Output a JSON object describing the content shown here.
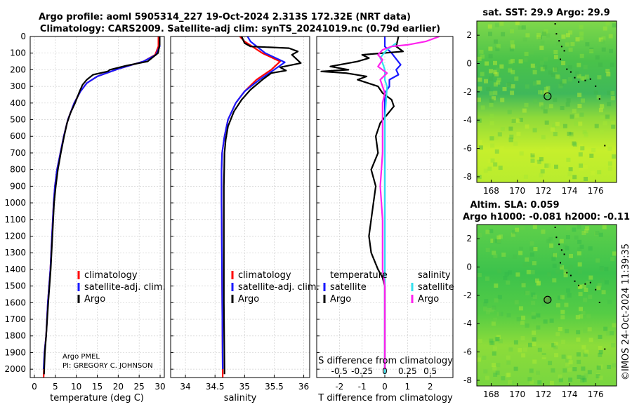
{
  "title": {
    "line1": "Argo profile: aoml 5905314_227 19-Oct-2024 2.313S 172.32E (NRT data)",
    "line2": "Climatology: CARS2009. Satellite-adj clim: synTS_20241019.nc (0.79d earlier)"
  },
  "pi_note": {
    "line1": "Argo PMEL",
    "line2": "PI: GREGORY C. JOHNSON"
  },
  "timestamp": "©IMOS 24-Oct-2024 11:39:35",
  "colors": {
    "climatology": "#ff0000",
    "satellite": "#1a1aff",
    "argo": "#000000",
    "sal_satellite": "#33e0ee",
    "sal_argo": "#ff22ee"
  },
  "chart_data": [
    {
      "type": "line",
      "id": "temperature",
      "xlabel": "temperature (deg C)",
      "xlim": [
        -1,
        31
      ],
      "xticks": [
        0,
        5,
        10,
        15,
        20,
        25,
        30
      ],
      "xtick_labels": [
        "0",
        "5",
        "10",
        "15",
        "20",
        "25",
        "30"
      ],
      "ylim": [
        2050,
        0
      ],
      "yticks": [
        0,
        100,
        200,
        300,
        400,
        500,
        600,
        700,
        800,
        900,
        1000,
        1100,
        1200,
        1300,
        1400,
        1500,
        1600,
        1700,
        1800,
        1900,
        2000
      ],
      "legend": [
        "climatology",
        "satellite-adj. clim.",
        "Argo"
      ],
      "series": [
        {
          "name": "climatology",
          "color": "#ff0000",
          "points": [
            [
              29.6,
              0
            ],
            [
              29.6,
              60
            ],
            [
              28.8,
              110
            ],
            [
              26,
              150
            ],
            [
              20,
              195
            ],
            [
              15,
              240
            ],
            [
              12.5,
              280
            ],
            [
              11,
              330
            ],
            [
              9.5,
              400
            ],
            [
              8,
              500
            ],
            [
              7,
              600
            ],
            [
              6.2,
              700
            ],
            [
              5.4,
              800
            ],
            [
              4.9,
              900
            ],
            [
              4.6,
              1000
            ],
            [
              4.2,
              1200
            ],
            [
              3.8,
              1400
            ],
            [
              3.2,
              1600
            ],
            [
              2.8,
              1800
            ],
            [
              2.4,
              1900
            ],
            [
              2.2,
              2050
            ]
          ]
        },
        {
          "name": "satellite-adj. clim.",
          "color": "#1a1aff",
          "points": [
            [
              29.9,
              0
            ],
            [
              29.9,
              60
            ],
            [
              29,
              110
            ],
            [
              26,
              150
            ],
            [
              20,
              195
            ],
            [
              15,
              240
            ],
            [
              12.5,
              280
            ],
            [
              11,
              330
            ],
            [
              9.5,
              400
            ],
            [
              8,
              500
            ],
            [
              7,
              600
            ],
            [
              6.2,
              700
            ],
            [
              5.4,
              800
            ],
            [
              4.9,
              900
            ],
            [
              4.6,
              1000
            ],
            [
              4.2,
              1200
            ],
            [
              3.8,
              1400
            ],
            [
              3.2,
              1600
            ],
            [
              2.8,
              1800
            ],
            [
              2.4,
              1900
            ],
            [
              2.2,
              2000
            ]
          ]
        },
        {
          "name": "Argo",
          "color": "#000000",
          "points": [
            [
              29.9,
              0
            ],
            [
              29.9,
              50
            ],
            [
              29.5,
              100
            ],
            [
              27,
              150
            ],
            [
              22,
              175
            ],
            [
              18,
              200
            ],
            [
              17.5,
              210
            ],
            [
              14,
              230
            ],
            [
              12.5,
              260
            ],
            [
              11.5,
              290
            ],
            [
              10.8,
              330
            ],
            [
              9.7,
              400
            ],
            [
              8.6,
              460
            ],
            [
              7.8,
              520
            ],
            [
              7.1,
              600
            ],
            [
              6.3,
              700
            ],
            [
              5.6,
              800
            ],
            [
              5.1,
              900
            ],
            [
              4.7,
              1000
            ],
            [
              4.3,
              1200
            ],
            [
              3.9,
              1400
            ],
            [
              3.3,
              1600
            ],
            [
              2.8,
              1800
            ],
            [
              2.5,
              1900
            ],
            [
              2.3,
              2030
            ]
          ]
        }
      ]
    },
    {
      "type": "line",
      "id": "salinity",
      "xlabel": "salinity",
      "xlim": [
        33.75,
        36.1
      ],
      "xticks": [
        34,
        34.5,
        35,
        35.5,
        36
      ],
      "xtick_labels": [
        "34",
        "34.5",
        "35",
        "35.5",
        "36"
      ],
      "ylim": [
        2050,
        0
      ],
      "yticks": [
        0,
        100,
        200,
        300,
        400,
        500,
        600,
        700,
        800,
        900,
        1000,
        1100,
        1200,
        1300,
        1400,
        1500,
        1600,
        1700,
        1800,
        1900,
        2000
      ],
      "legend": [
        "climatology",
        "satellite-adj. clim.",
        "Argo"
      ],
      "series": [
        {
          "name": "climatology",
          "color": "#ff0000",
          "points": [
            [
              34.92,
              0
            ],
            [
              35.0,
              30
            ],
            [
              35.3,
              100
            ],
            [
              35.6,
              150
            ],
            [
              35.45,
              200
            ],
            [
              35.2,
              260
            ],
            [
              35.0,
              330
            ],
            [
              34.85,
              400
            ],
            [
              34.72,
              500
            ],
            [
              34.66,
              600
            ],
            [
              34.62,
              700
            ],
            [
              34.61,
              800
            ],
            [
              34.61,
              1000
            ],
            [
              34.62,
              1500
            ],
            [
              34.63,
              2000
            ],
            [
              34.63,
              2050
            ]
          ]
        },
        {
          "name": "satellite-adj. clim.",
          "color": "#1a1aff",
          "points": [
            [
              35.05,
              0
            ],
            [
              35.1,
              30
            ],
            [
              35.35,
              100
            ],
            [
              35.68,
              155
            ],
            [
              35.5,
              200
            ],
            [
              35.25,
              260
            ],
            [
              35.0,
              330
            ],
            [
              34.85,
              400
            ],
            [
              34.72,
              500
            ],
            [
              34.66,
              600
            ],
            [
              34.62,
              700
            ],
            [
              34.61,
              800
            ],
            [
              34.61,
              1000
            ],
            [
              34.62,
              1500
            ],
            [
              34.63,
              2000
            ]
          ]
        },
        {
          "name": "Argo",
          "color": "#000000",
          "points": [
            [
              34.95,
              0
            ],
            [
              35.0,
              40
            ],
            [
              35.1,
              60
            ],
            [
              35.75,
              70
            ],
            [
              35.9,
              90
            ],
            [
              35.8,
              110
            ],
            [
              35.95,
              160
            ],
            [
              35.6,
              185
            ],
            [
              35.7,
              205
            ],
            [
              35.45,
              220
            ],
            [
              35.3,
              260
            ],
            [
              35.1,
              320
            ],
            [
              34.95,
              380
            ],
            [
              34.82,
              450
            ],
            [
              34.72,
              540
            ],
            [
              34.68,
              620
            ],
            [
              34.66,
              700
            ],
            [
              34.65,
              900
            ],
            [
              34.65,
              1200
            ],
            [
              34.65,
              1600
            ],
            [
              34.66,
              2000
            ],
            [
              34.66,
              2030
            ]
          ]
        }
      ]
    },
    {
      "type": "line",
      "id": "difference",
      "xlabel": "T difference from climatology",
      "top_xlabel": "S difference from climatology",
      "xlim": [
        -3,
        3
      ],
      "xticks": [
        -2,
        -1,
        0,
        1,
        2
      ],
      "xtick_labels": [
        "-2",
        "-1",
        "0",
        "1",
        "2"
      ],
      "top_xticks": [
        -0.5,
        -0.25,
        0,
        0.25,
        0.5
      ],
      "top_xtick_labels": [
        "-0.5",
        "-0.25",
        "0",
        "0.25",
        "0.5"
      ],
      "ylim": [
        2050,
        0
      ],
      "yticks": [
        0,
        100,
        200,
        300,
        400,
        500,
        600,
        700,
        800,
        900,
        1000,
        1100,
        1200,
        1300,
        1400,
        1500,
        1600,
        1700,
        1800,
        1900,
        2000
      ],
      "legend": {
        "temperature": {
          "title": "temperature",
          "items": [
            "satellite",
            "Argo"
          ]
        },
        "salinity": {
          "title": "salinity",
          "items": [
            "satellite",
            "Argo"
          ]
        }
      },
      "series": [
        {
          "name": "T satellite",
          "color": "#1a1aff",
          "points": [
            [
              0,
              0
            ],
            [
              0,
              60
            ],
            [
              0.3,
              100
            ],
            [
              0.7,
              170
            ],
            [
              0.5,
              200
            ],
            [
              0.6,
              230
            ],
            [
              0.2,
              260
            ],
            [
              0.2,
              300
            ],
            [
              0,
              340
            ],
            [
              0,
              500
            ],
            [
              0,
              1000
            ],
            [
              0,
              1500
            ],
            [
              0,
              2000
            ]
          ]
        },
        {
          "name": "T Argo",
          "color": "#000000",
          "points": [
            [
              0.6,
              0
            ],
            [
              0.5,
              60
            ],
            [
              0.8,
              90
            ],
            [
              -1,
              110
            ],
            [
              -0.7,
              130
            ],
            [
              -1.2,
              150
            ],
            [
              -2.4,
              180
            ],
            [
              -1.6,
              200
            ],
            [
              -2.8,
              210
            ],
            [
              -1.7,
              220
            ],
            [
              -0.8,
              240
            ],
            [
              -1.2,
              260
            ],
            [
              -0.3,
              300
            ],
            [
              -0.1,
              340
            ],
            [
              0.3,
              380
            ],
            [
              0.4,
              420
            ],
            [
              0.1,
              470
            ],
            [
              -0.2,
              520
            ],
            [
              -0.4,
              600
            ],
            [
              -0.3,
              700
            ],
            [
              -0.6,
              800
            ],
            [
              -0.4,
              900
            ],
            [
              -0.5,
              1000
            ],
            [
              -0.6,
              1100
            ],
            [
              -0.7,
              1200
            ],
            [
              -0.6,
              1300
            ],
            [
              -0.3,
              1400
            ],
            [
              -0.1,
              1450
            ],
            [
              0,
              1500
            ],
            [
              0,
              2000
            ]
          ]
        },
        {
          "name": "S satellite",
          "color": "#33e0ee",
          "points": [
            [
              0.5,
              40
            ],
            [
              0.3,
              60
            ],
            [
              0.1,
              80
            ],
            [
              -0.1,
              110
            ],
            [
              -0.2,
              130
            ],
            [
              -0.1,
              160
            ],
            [
              0,
              200
            ],
            [
              0,
              260
            ],
            [
              0.1,
              300
            ],
            [
              0.05,
              400
            ],
            [
              0,
              500
            ],
            [
              0,
              1000
            ],
            [
              0,
              1500
            ],
            [
              0,
              2000
            ],
            [
              0,
              2030
            ]
          ]
        },
        {
          "name": "S Argo",
          "color": "#ff22ee",
          "points": [
            [
              2.4,
              0
            ],
            [
              1.8,
              30
            ],
            [
              1.0,
              50
            ],
            [
              0.3,
              60
            ],
            [
              -0.1,
              80
            ],
            [
              -0.3,
              110
            ],
            [
              -0.1,
              140
            ],
            [
              -0.3,
              180
            ],
            [
              0.1,
              220
            ],
            [
              -0.2,
              260
            ],
            [
              -0.1,
              300
            ],
            [
              0,
              340
            ],
            [
              -0.1,
              400
            ],
            [
              -0.1,
              500
            ],
            [
              -0.1,
              700
            ],
            [
              -0.2,
              900
            ],
            [
              -0.1,
              1100
            ],
            [
              -0.1,
              1300
            ],
            [
              -0.1,
              1400
            ],
            [
              0,
              1500
            ],
            [
              0,
              2000
            ]
          ]
        }
      ]
    },
    {
      "type": "heatmap",
      "id": "sst-map",
      "title": "sat. SST: 29.9 Argo: 29.9",
      "xlim": [
        166.9,
        177.6
      ],
      "xticks": [
        168,
        170,
        172,
        174,
        176
      ],
      "xtick_labels": [
        "168",
        "170",
        "172",
        "174",
        "176"
      ],
      "ylim": [
        -8.4,
        3.0
      ],
      "yticks": [
        -8,
        -6,
        -4,
        -2,
        0,
        2
      ],
      "ytick_labels": [
        "-8",
        "-6",
        "-4",
        "-2",
        "0",
        "2"
      ],
      "marker": {
        "lon": 172.32,
        "lat": -2.313
      }
    },
    {
      "type": "heatmap",
      "id": "sla-map",
      "title": "Altim. SLA: 0.059",
      "subtitle": "Argo h1000: -0.081 h2000: -0.11",
      "xlim": [
        166.9,
        177.6
      ],
      "xticks": [
        168,
        170,
        172,
        174,
        176
      ],
      "xtick_labels": [
        "168",
        "170",
        "172",
        "174",
        "176"
      ],
      "ylim": [
        -8.4,
        3.0
      ],
      "yticks": [
        -8,
        -6,
        -4,
        -2,
        0,
        2
      ],
      "ytick_labels": [
        "-8",
        "-6",
        "-4",
        "-2",
        "0",
        "2"
      ],
      "marker": {
        "lon": 172.32,
        "lat": -2.313
      }
    }
  ]
}
